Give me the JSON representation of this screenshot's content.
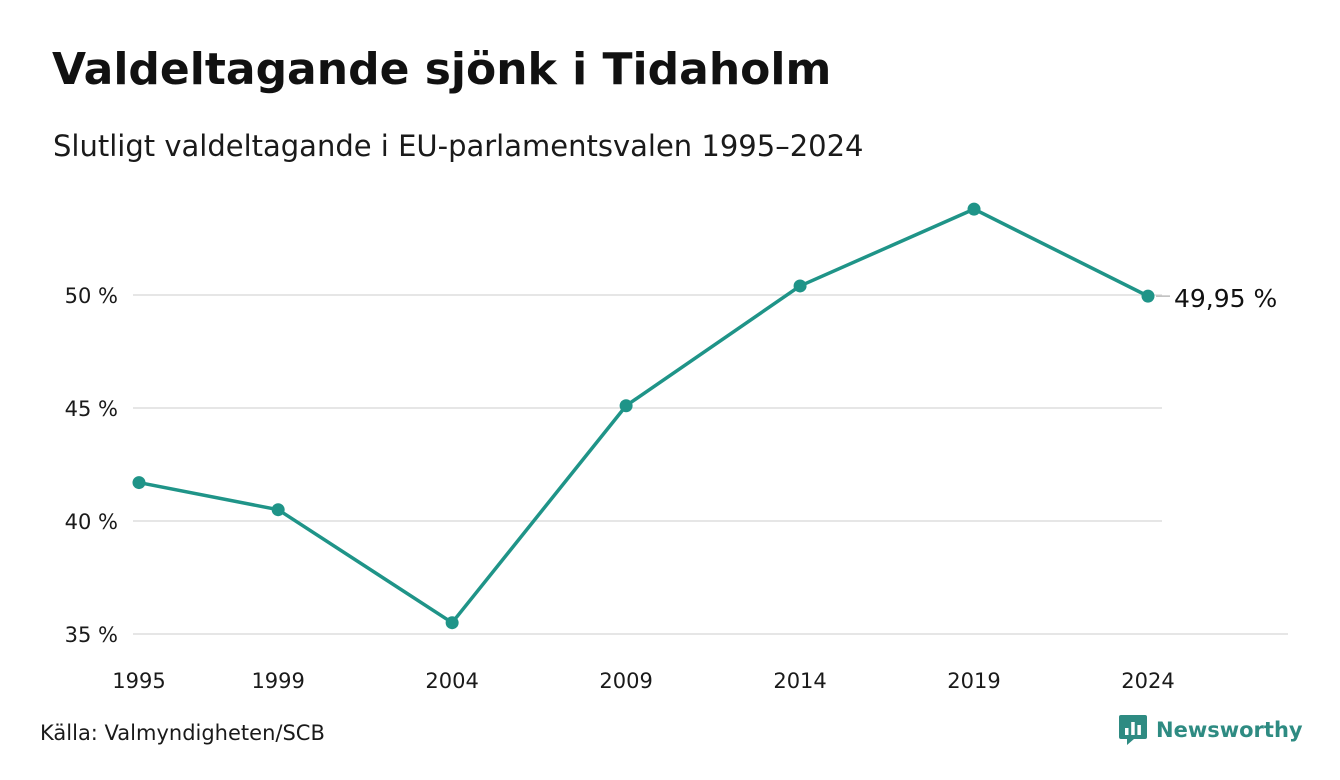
{
  "title": "Valdeltagande sjönk i Tidaholm",
  "subtitle": "Slutligt valdeltagande i EU-parlamentsvalen 1995–2024",
  "source": "Källa: Valmyndigheten/SCB",
  "brand": {
    "name": "Newsworthy",
    "icon": "newsworthy-logo-icon",
    "color": "#2e8b82"
  },
  "colors": {
    "line": "#1f9488",
    "grid": "#dddddd",
    "text": "#111111"
  },
  "chart_data": {
    "type": "line",
    "title": "Valdeltagande sjönk i Tidaholm",
    "subtitle": "Slutligt valdeltagande i EU-parlamentsvalen 1995–2024",
    "x": [
      1995,
      1999,
      2004,
      2009,
      2014,
      2019,
      2024
    ],
    "x_tick_labels": [
      "1995",
      "1999",
      "2004",
      "2009",
      "2014",
      "2019",
      "2024"
    ],
    "series": [
      {
        "values": [
          41.7,
          40.5,
          35.5,
          45.1,
          50.4,
          53.8,
          49.95
        ]
      }
    ],
    "y_ticks": [
      35,
      40,
      45,
      50
    ],
    "y_tick_labels": [
      "35 %",
      "40 %",
      "45 %",
      "50 %"
    ],
    "ylim": [
      35,
      55
    ],
    "grid": true,
    "last_value_label": "49,95 %",
    "xlabel": "",
    "ylabel": ""
  }
}
